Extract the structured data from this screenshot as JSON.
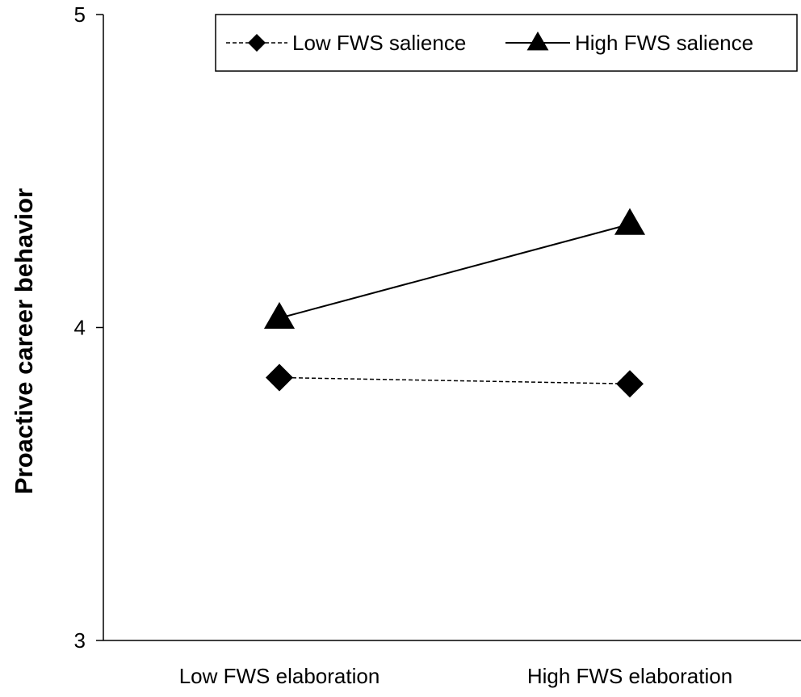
{
  "chart_data": {
    "type": "line",
    "title": "",
    "xlabel": "",
    "ylabel": "Proactive career behavior",
    "categories": [
      "Low FWS elaboration",
      "High FWS elaboration"
    ],
    "ylim": [
      3,
      5
    ],
    "yticks": [
      "3",
      "4",
      "5"
    ],
    "grid": false,
    "legend_position": "top-right",
    "series": [
      {
        "name": "Low FWS salience",
        "values": [
          3.84,
          3.82
        ],
        "marker": "diamond",
        "line_style": "dashed",
        "color": "#000000"
      },
      {
        "name": "High FWS salience",
        "values": [
          4.03,
          4.33
        ],
        "marker": "triangle",
        "line_style": "solid",
        "color": "#000000"
      }
    ]
  }
}
